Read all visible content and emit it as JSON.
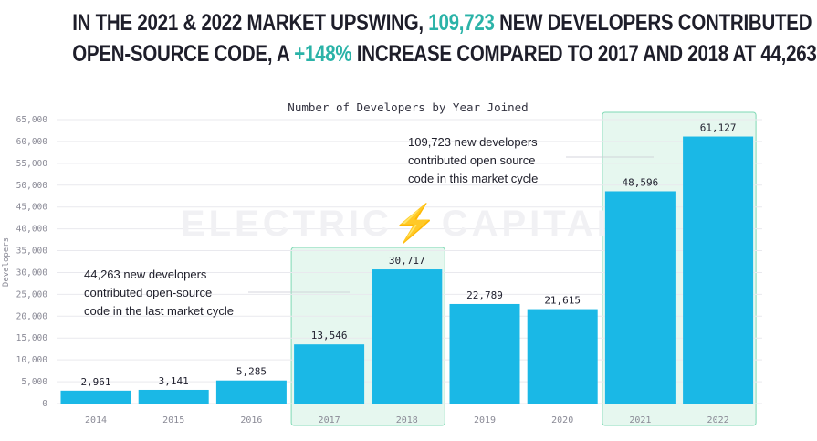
{
  "headline": {
    "line1_a": "IN THE 2021 & 2022 MARKET UPSWING, ",
    "line1_b": "109,723",
    "line1_c": " NEW DEVELOPERS CONTRIBUTED",
    "line2_a": "OPEN-SOURCE CODE, A ",
    "line2_b": "+148%",
    "line2_c": " INCREASE COMPARED TO 2017 AND 2018 AT 44,263",
    "highlight_color": "#2bb3a8"
  },
  "watermark": "ELECTRIC⚡CAPITAL",
  "chart_data": {
    "type": "bar",
    "title": "Number of Developers by Year Joined",
    "ylabel": "Developers",
    "xlabel": "",
    "categories": [
      "2014",
      "2015",
      "2016",
      "2017",
      "2018",
      "2019",
      "2020",
      "2021",
      "2022"
    ],
    "values": [
      2961,
      3141,
      5285,
      13546,
      30717,
      22789,
      21615,
      48596,
      61127
    ],
    "value_labels": [
      "2,961",
      "3,141",
      "5,285",
      "13,546",
      "30,717",
      "22,789",
      "21,615",
      "48,596",
      "61,127"
    ],
    "ylim": [
      0,
      65000
    ],
    "yticks": [
      0,
      5000,
      10000,
      15000,
      20000,
      25000,
      30000,
      35000,
      40000,
      45000,
      50000,
      55000,
      60000,
      65000
    ],
    "ytick_labels": [
      "0",
      "5,000",
      "10,000",
      "15,000",
      "20,000",
      "25,000",
      "30,000",
      "35,000",
      "40,000",
      "45,000",
      "50,000",
      "55,000",
      "60,000",
      "65,000"
    ],
    "grid": true,
    "bar_color": "#1ab8e6",
    "highlight_fill": "#e6f7ef",
    "highlight_stroke": "#7fd9b4",
    "highlight_groups": [
      [
        "2017",
        "2018"
      ],
      [
        "2021",
        "2022"
      ]
    ],
    "annotations": [
      {
        "lines": [
          "44,263 new developers",
          "contributed open-source",
          "code in the last market cycle"
        ],
        "target": "2017-2018"
      },
      {
        "lines": [
          "109,723 new developers",
          "contributed open source",
          "code in this market cycle"
        ],
        "target": "2021-2022"
      }
    ]
  }
}
